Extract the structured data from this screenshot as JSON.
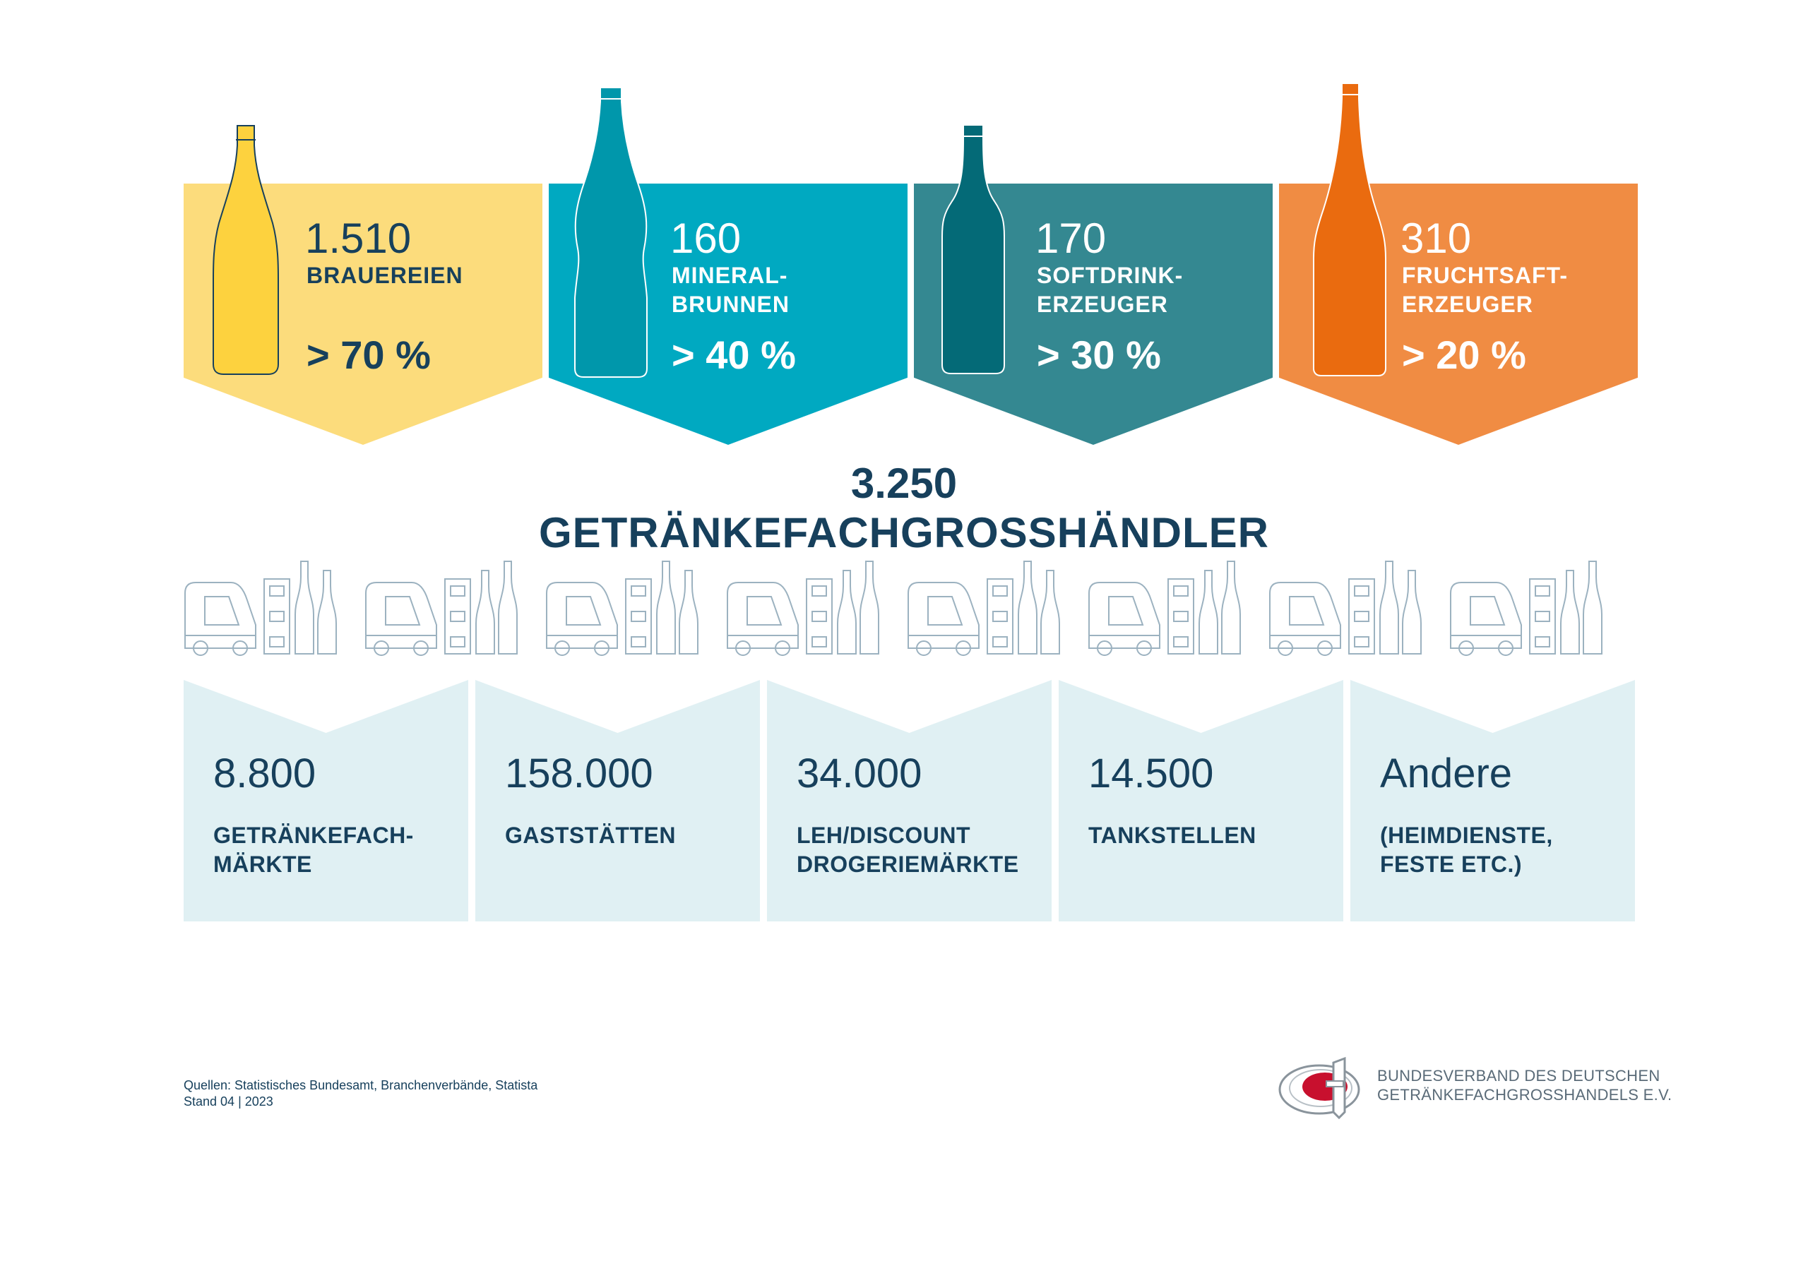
{
  "colors": {
    "navy": "#17405c",
    "beer": "#fcdc7c",
    "beer_bottle": "#fdd23e",
    "mineral": "#00a9c1",
    "mineral_bottle": "#0097ab",
    "softdrink": "#348891",
    "softdrink_bottle": "#046a77",
    "juice": "#f08c43",
    "juice_bottle": "#ea6b0f",
    "outlet_bg": "#e0f0f3",
    "icon_outline": "#9cb2c0",
    "logo_red": "#c8102e"
  },
  "producers": [
    {
      "number": "1.510",
      "label_line1": "BRAUEREIEN",
      "label_line2": "",
      "share": "> 70 %",
      "icon": "beer-bottle-icon"
    },
    {
      "number": "160",
      "label_line1": "MINERAL-",
      "label_line2": "BRUNNEN",
      "share": "> 40 %",
      "icon": "water-bottle-icon"
    },
    {
      "number": "170",
      "label_line1": "SOFTDRINK-",
      "label_line2": "ERZEUGER",
      "share": "> 30 %",
      "icon": "softdrink-bottle-icon"
    },
    {
      "number": "310",
      "label_line1": "FRUCHTSAFT-",
      "label_line2": "ERZEUGER",
      "share": "> 20 %",
      "icon": "juice-bottle-icon"
    }
  ],
  "wholesale": {
    "number": "3.250",
    "label": "GETRÄNKEFACHGROSSHÄNDLER"
  },
  "outlets": [
    {
      "number": "8.800",
      "label_line1": "GETRÄNKEFACH-",
      "label_line2": "MÄRKTE"
    },
    {
      "number": "158.000",
      "label_line1": "GASTSTÄTTEN",
      "label_line2": ""
    },
    {
      "number": "34.000",
      "label_line1": "LEH/DISCOUNT",
      "label_line2": "DROGERIEMÄRKTE"
    },
    {
      "number": "14.500",
      "label_line1": "TANKSTELLEN",
      "label_line2": ""
    },
    {
      "number": "Andere",
      "label_line1": "(HEIMDIENSTE,",
      "label_line2": "FESTE ETC.)"
    }
  ],
  "footer": {
    "sources": "Quellen: Statistisches Bundesamt, Branchenverbände, Statista",
    "date": "Stand 04 | 2023",
    "org_line1": "BUNDESVERBAND DES DEUTSCHEN",
    "org_line2": "GETRÄNKEFACHGROSSHANDELS E.V."
  }
}
